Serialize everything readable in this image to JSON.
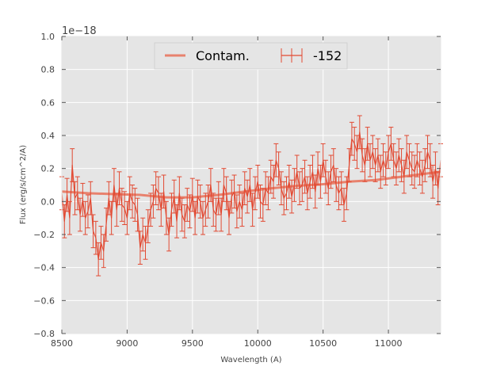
{
  "chart_data": {
    "type": "line",
    "xlabel": "Wavelength (A)",
    "ylabel": "Flux (erg/s/cm^2/A)",
    "y_offset_label": "1e−18",
    "xlim": [
      8500,
      11400
    ],
    "ylim": [
      -0.8,
      1.0
    ],
    "x_ticks": [
      8500,
      9000,
      9500,
      10000,
      10500,
      11000
    ],
    "x_tick_labels": [
      "8500",
      "9000",
      "9500",
      "10000",
      "10500",
      "11000"
    ],
    "y_ticks": [
      -0.8,
      -0.6,
      -0.4,
      -0.2,
      0.0,
      0.2,
      0.4,
      0.6,
      0.8,
      1.0
    ],
    "y_tick_labels": [
      "−0.8",
      "−0.6",
      "−0.4",
      "−0.2",
      "0.0",
      "0.2",
      "0.4",
      "0.6",
      "0.8",
      "1.0"
    ],
    "grid": true,
    "legend_position": "top-center",
    "colors": {
      "plot_background": "#e5e5e5",
      "grid": "#ffffff",
      "data": "#e24a33",
      "contam": "#e8826e"
    },
    "series": [
      {
        "name": "Contam.",
        "style": "thick-line",
        "x": [
          8500,
          8700,
          8900,
          9100,
          9300,
          9500,
          9700,
          9900,
          10100,
          10300,
          10500,
          10700,
          10900,
          11100,
          11300,
          11400
        ],
        "y": [
          0.06,
          0.05,
          0.045,
          0.04,
          0.025,
          0.025,
          0.04,
          0.06,
          0.08,
          0.095,
          0.105,
          0.12,
          0.13,
          0.15,
          0.17,
          0.18
        ]
      },
      {
        "name": "-152",
        "style": "errorbar-line",
        "x": [
          8500,
          8520,
          8540,
          8560,
          8580,
          8600,
          8620,
          8640,
          8660,
          8680,
          8700,
          8720,
          8740,
          8760,
          8780,
          8800,
          8820,
          8840,
          8860,
          8880,
          8900,
          8920,
          8940,
          8960,
          8980,
          9000,
          9020,
          9040,
          9060,
          9080,
          9100,
          9120,
          9140,
          9160,
          9180,
          9200,
          9220,
          9240,
          9260,
          9280,
          9300,
          9320,
          9340,
          9360,
          9380,
          9400,
          9420,
          9440,
          9460,
          9480,
          9500,
          9520,
          9540,
          9560,
          9580,
          9600,
          9620,
          9640,
          9660,
          9680,
          9700,
          9720,
          9740,
          9760,
          9780,
          9800,
          9820,
          9840,
          9860,
          9880,
          9900,
          9920,
          9940,
          9960,
          9980,
          10000,
          10020,
          10040,
          10060,
          10080,
          10100,
          10120,
          10140,
          10160,
          10180,
          10200,
          10220,
          10240,
          10260,
          10280,
          10300,
          10320,
          10340,
          10360,
          10380,
          10400,
          10420,
          10440,
          10460,
          10480,
          10500,
          10520,
          10540,
          10560,
          10580,
          10600,
          10620,
          10640,
          10660,
          10680,
          10700,
          10720,
          10740,
          10760,
          10780,
          10800,
          10820,
          10840,
          10860,
          10880,
          10900,
          10920,
          10940,
          10960,
          10980,
          11000,
          11020,
          11040,
          11060,
          11080,
          11100,
          11120,
          11140,
          11160,
          11180,
          11200,
          11220,
          11240,
          11260,
          11280,
          11300,
          11320,
          11340,
          11360,
          11380,
          11400
        ],
        "y": [
          0.05,
          -0.12,
          0.04,
          -0.1,
          0.22,
          0.02,
          0.05,
          -0.08,
          0.01,
          -0.1,
          -0.06,
          0.02,
          -0.18,
          -0.22,
          -0.35,
          -0.25,
          -0.3,
          -0.14,
          0.02,
          -0.1,
          0.1,
          -0.05,
          0.08,
          -0.02,
          -0.04,
          -0.1,
          0.05,
          0.0,
          -0.02,
          -0.08,
          -0.28,
          -0.2,
          -0.25,
          -0.15,
          -0.05,
          0.0,
          0.08,
          0.05,
          -0.05,
          0.06,
          -0.1,
          -0.2,
          -0.05,
          0.03,
          -0.12,
          0.05,
          -0.08,
          -0.12,
          -0.02,
          -0.06,
          0.04,
          -0.1,
          0.03,
          0.0,
          -0.1,
          -0.05,
          0.0,
          0.1,
          -0.05,
          -0.08,
          0.02,
          -0.08,
          0.1,
          0.05,
          -0.1,
          0.03,
          0.06,
          -0.06,
          0.0,
          -0.05,
          0.08,
          0.03,
          0.1,
          -0.05,
          0.05,
          0.12,
          0.0,
          -0.02,
          0.08,
          0.05,
          0.15,
          0.12,
          0.25,
          0.2,
          0.08,
          0.02,
          0.05,
          0.12,
          0.03,
          0.1,
          0.18,
          0.08,
          0.1,
          0.15,
          0.05,
          0.12,
          0.18,
          0.06,
          0.2,
          0.12,
          0.25,
          0.15,
          0.08,
          0.18,
          0.22,
          0.1,
          0.05,
          0.08,
          -0.02,
          0.05,
          0.22,
          0.38,
          0.35,
          0.3,
          0.42,
          0.28,
          0.22,
          0.35,
          0.25,
          0.3,
          0.22,
          0.28,
          0.18,
          0.25,
          0.2,
          0.3,
          0.35,
          0.25,
          0.2,
          0.28,
          0.22,
          0.15,
          0.3,
          0.25,
          0.2,
          0.18,
          0.25,
          0.2,
          0.15,
          0.22,
          0.3,
          0.25,
          0.12,
          0.2,
          0.08,
          0.25
        ],
        "error": 0.1
      }
    ]
  }
}
